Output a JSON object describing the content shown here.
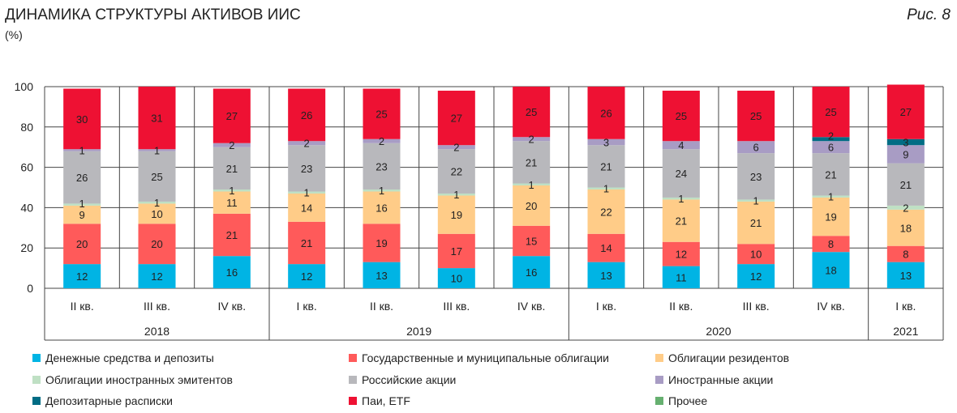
{
  "chart_data": {
    "type": "bar",
    "stacked": true,
    "title": "ДИНАМИКА СТРУКТУРЫ АКТИВОВ ИИС",
    "figure_label": "Рис. 8",
    "ylabel": "(%)",
    "ylim": [
      0,
      100
    ],
    "yticks": [
      0,
      20,
      40,
      60,
      80,
      100
    ],
    "grid": true,
    "legend_placement": "bottom",
    "categories": [
      "II кв.",
      "III кв.",
      "IV кв.",
      "I кв.",
      "II кв.",
      "III кв.",
      "IV кв.",
      "I кв.",
      "II кв.",
      "III кв.",
      "IV кв.",
      "I кв."
    ],
    "years": [
      {
        "label": "2018",
        "span": 3
      },
      {
        "label": "2019",
        "span": 4
      },
      {
        "label": "2020",
        "span": 4
      },
      {
        "label": "2021",
        "span": 1
      }
    ],
    "series": [
      {
        "name": "Денежные средства и депозиты",
        "color": "#00b4e4",
        "values": [
          12,
          12,
          16,
          12,
          13,
          10,
          16,
          13,
          11,
          12,
          18,
          13
        ]
      },
      {
        "name": "Государственные и муниципальные облигации",
        "color": "#ff5a5a",
        "values": [
          20,
          20,
          21,
          21,
          19,
          17,
          15,
          14,
          12,
          10,
          8,
          8
        ]
      },
      {
        "name": "Облигации резидентов",
        "color": "#ffcc88",
        "values": [
          9,
          10,
          11,
          14,
          16,
          19,
          20,
          22,
          21,
          21,
          19,
          18
        ]
      },
      {
        "name": "Облигации иностранных эмитентов",
        "color": "#bfe0c4",
        "values": [
          1,
          1,
          1,
          1,
          1,
          1,
          1,
          1,
          1,
          1,
          1,
          2
        ]
      },
      {
        "name": "Российские акции",
        "color": "#b8b8bc",
        "values": [
          26,
          25,
          21,
          23,
          23,
          22,
          21,
          21,
          24,
          23,
          21,
          21
        ]
      },
      {
        "name": "Иностранные акции",
        "color": "#a89cc4",
        "values": [
          1,
          1,
          2,
          2,
          2,
          2,
          2,
          3,
          4,
          6,
          6,
          9
        ]
      },
      {
        "name": "Депозитарные расписки",
        "color": "#006c84",
        "values": [
          0,
          0,
          0,
          0,
          0,
          0,
          0,
          0,
          0,
          0,
          2,
          3
        ]
      },
      {
        "name": "Паи, ETF",
        "color": "#ee1133",
        "values": [
          30,
          31,
          27,
          26,
          25,
          27,
          25,
          26,
          25,
          25,
          25,
          27
        ]
      },
      {
        "name": "Прочее",
        "color": "#66b070",
        "values": [
          0,
          0,
          0,
          0,
          0,
          0,
          0,
          0,
          0,
          0,
          0,
          0
        ]
      }
    ]
  }
}
